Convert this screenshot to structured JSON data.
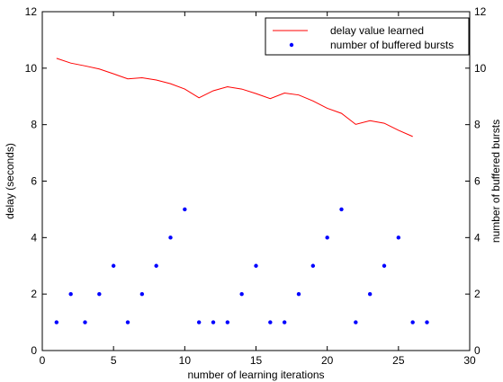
{
  "chart_data": {
    "type": "line",
    "title": "",
    "xlabel": "number of learning iterations",
    "ylabel": "delay (seconds)",
    "y2label": "number of buffered bursts",
    "xlim": [
      0,
      30
    ],
    "ylim": [
      0,
      12
    ],
    "y2lim": [
      0,
      12
    ],
    "xticks": [
      0,
      5,
      10,
      15,
      20,
      25,
      30
    ],
    "yticks": [
      0,
      2,
      4,
      6,
      8,
      10,
      12
    ],
    "y2ticks": [
      0,
      2,
      4,
      6,
      8,
      10,
      12
    ],
    "grid": false,
    "legend_position": "top-right",
    "series": [
      {
        "name": "delay value learned",
        "kind": "line",
        "color": "#ff0000",
        "axis": "left",
        "x": [
          1,
          2,
          3,
          4,
          5,
          6,
          7,
          8,
          9,
          10,
          11,
          12,
          13,
          14,
          15,
          16,
          17,
          18,
          19,
          20,
          21,
          22,
          23,
          24,
          25,
          26
        ],
        "y": [
          10.35,
          10.18,
          10.08,
          9.97,
          9.8,
          9.62,
          9.66,
          9.58,
          9.45,
          9.26,
          8.95,
          9.2,
          9.34,
          9.26,
          9.1,
          8.92,
          9.12,
          9.05,
          8.84,
          8.58,
          8.4,
          8.01,
          8.14,
          8.05,
          7.8,
          7.58
        ]
      },
      {
        "name": "number of buffered bursts",
        "kind": "scatter",
        "color": "#0000ff",
        "axis": "right",
        "x": [
          1,
          2,
          3,
          4,
          5,
          6,
          7,
          8,
          9,
          10,
          11,
          12,
          13,
          14,
          15,
          16,
          17,
          18,
          19,
          20,
          21,
          22,
          23,
          24,
          25,
          26,
          27
        ],
        "y": [
          1,
          2,
          1,
          2,
          3,
          1,
          2,
          3,
          4,
          5,
          1,
          1,
          1,
          2,
          3,
          1,
          1,
          2,
          3,
          4,
          5,
          1,
          2,
          3,
          4,
          1,
          1
        ]
      }
    ]
  }
}
